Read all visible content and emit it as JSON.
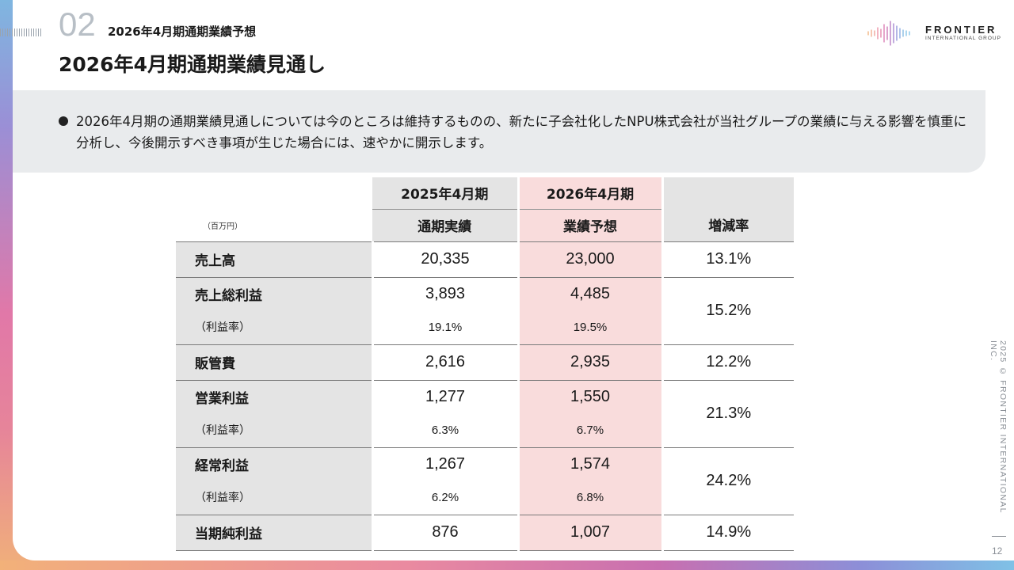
{
  "header": {
    "section_number": "02",
    "section_title": "2026年4月期通期業績予想",
    "page_title": "2026年4月期通期業績見通し"
  },
  "logo": {
    "name": "FRONTIER",
    "sub": "INTERNATIONAL GROUP"
  },
  "notice": {
    "text": "2026年4月期の通期業績見通しについては今のところは維持するものの、新たに子会社化したNPU株式会社が当社グループの業績に与える影響を慎重に分析し、今後開示すべき事項が生じた場合には、速やかに開示します。"
  },
  "table": {
    "unit": "（百万円）",
    "col_2025_top": "2025年4月期",
    "col_2025_sub": "通期実績",
    "col_2026_top": "2026年4月期",
    "col_2026_sub": "業績予想",
    "col_change": "増減率",
    "rows": [
      {
        "label": "売上高",
        "v2025": "20,335",
        "v2026": "23,000",
        "change": "13.1%"
      },
      {
        "label": "売上総利益",
        "v2025": "3,893",
        "v2026": "4,485",
        "change": "15.2%",
        "sub_label": "（利益率）",
        "s2025": "19.1%",
        "s2026": "19.5%"
      },
      {
        "label": "販管費",
        "v2025": "2,616",
        "v2026": "2,935",
        "change": "12.2%"
      },
      {
        "label": "営業利益",
        "v2025": "1,277",
        "v2026": "1,550",
        "change": "21.3%",
        "sub_label": "（利益率）",
        "s2025": "6.3%",
        "s2026": "6.7%"
      },
      {
        "label": "経常利益",
        "v2025": "1,267",
        "v2026": "1,574",
        "change": "24.2%",
        "sub_label": "（利益率）",
        "s2025": "6.2%",
        "s2026": "6.8%"
      },
      {
        "label": "当期純利益",
        "v2025": "876",
        "v2026": "1,007",
        "change": "14.9%"
      }
    ]
  },
  "footer": {
    "copyright": "2025 © FRONTIER INTERNATIONAL INC.",
    "page_number": "12"
  }
}
